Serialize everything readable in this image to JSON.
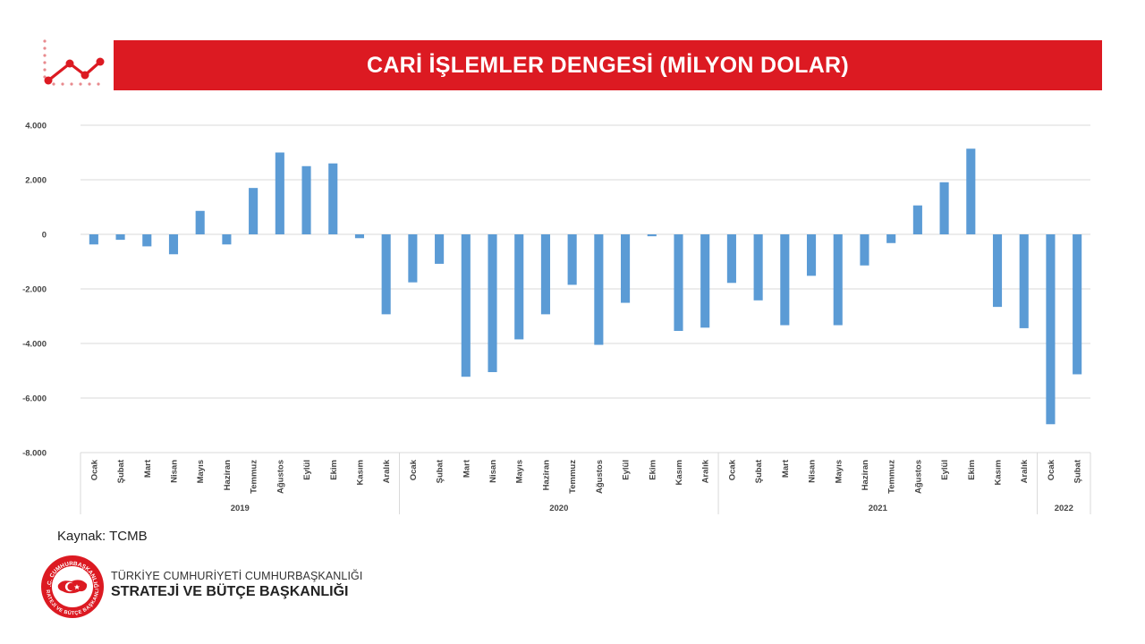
{
  "header": {
    "title": "CARİ İŞLEMLER DENGESİ (MİLYON DOLAR)",
    "icon": "trend-line-icon"
  },
  "footer": {
    "source": "Kaynak: TCMB",
    "org_line1": "TÜRKİYE CUMHURİYETİ CUMHURBAŞKANLIĞI",
    "org_line2": "STRATEJİ VE BÜTÇE BAŞKANLIĞI",
    "seal_top_text": "T.C. CUMHURBAŞKANLIĞI",
    "seal_bottom_text": "STRATEJİ VE BÜTÇE BAŞKANLIĞI"
  },
  "colors": {
    "accent": "#dc1a22",
    "bar": "#5b9bd5",
    "grid": "#d9d9d9"
  },
  "chart_data": {
    "type": "bar",
    "title": "",
    "xlabel": "",
    "ylabel": "",
    "ylim": [
      -8000,
      4000
    ],
    "yticks": [
      4000,
      2000,
      0,
      -2000,
      -4000,
      -6000,
      -8000
    ],
    "ytick_labels": [
      "4.000",
      "2.000",
      "0",
      "-2.000",
      "-4.000",
      "-6.000",
      "-8.000"
    ],
    "grid": true,
    "legend": "none",
    "categories": [
      "Ocak",
      "Şubat",
      "Mart",
      "Nisan",
      "Mayıs",
      "Haziran",
      "Temmuz",
      "Ağustos",
      "Eylül",
      "Ekim",
      "Kasım",
      "Aralık",
      "Ocak",
      "Şubat",
      "Mart",
      "Nisan",
      "Mayıs",
      "Haziran",
      "Temmuz",
      "Ağustos",
      "Eylül",
      "Ekim",
      "Kasım",
      "Aralık",
      "Ocak",
      "Şubat",
      "Mart",
      "Nisan",
      "Mayıs",
      "Haziran",
      "Temmuz",
      "Ağustos",
      "Eylül",
      "Ekim",
      "Kasım",
      "Aralık",
      "Ocak",
      "Şubat"
    ],
    "groups": [
      {
        "label": "2019",
        "count": 12
      },
      {
        "label": "2020",
        "count": 12
      },
      {
        "label": "2021",
        "count": 12
      },
      {
        "label": "2022",
        "count": 2
      }
    ],
    "values": [
      -370,
      -200,
      -440,
      -730,
      860,
      -370,
      1700,
      3000,
      2500,
      2600,
      -140,
      -2930,
      -1760,
      -1080,
      -5220,
      -5050,
      -3850,
      -2930,
      -1850,
      -4050,
      -2510,
      -70,
      -3540,
      -3420,
      -1780,
      -2420,
      -3330,
      -1520,
      -3330,
      -1140,
      -320,
      1060,
      1910,
      3140,
      -2660,
      -3440,
      -6960,
      -5130
    ]
  }
}
